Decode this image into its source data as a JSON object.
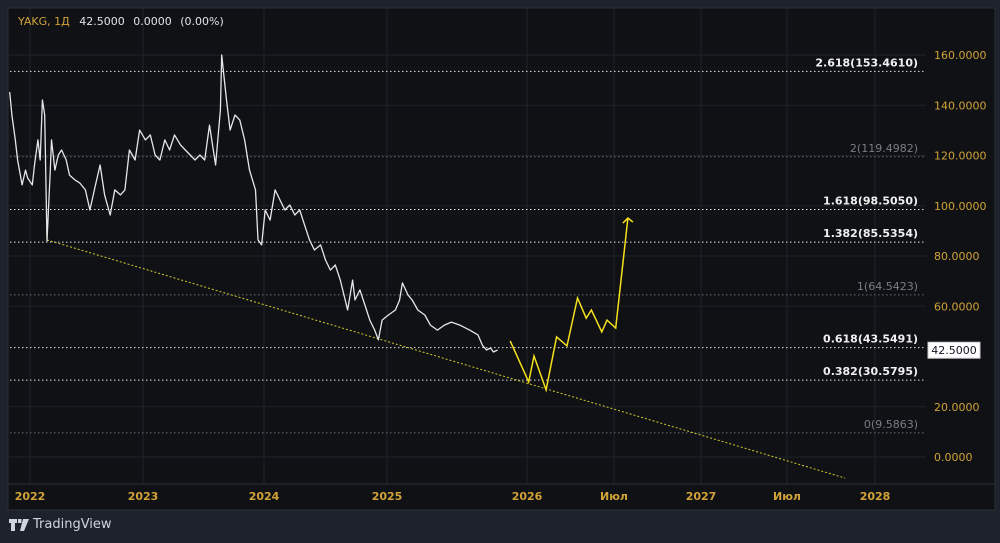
{
  "header": {
    "symbol": "YAKG, 1Д",
    "price": "42.5000",
    "change": "0.0000",
    "change_pct": "(0.00%)"
  },
  "brand": {
    "name": "TradingView",
    "icon": "tradingview-logo-icon"
  },
  "colors": {
    "background": "#1e222d",
    "panel": "#0f1115",
    "axis_text": "#d1a237",
    "price_line": "#e6e6e6",
    "projection": "#f5e11c",
    "trendline": "#d9c92a",
    "grid": "#1f2229"
  },
  "chart_data": {
    "type": "line",
    "title": "YAKG, 1Д",
    "ylim": [
      -12,
      170
    ],
    "xlim": [
      2021.8,
      2028.3
    ],
    "y_ticks": [
      "160.0000",
      "140.0000",
      "120.0000",
      "100.0000",
      "80.0000",
      "60.0000",
      "20.0000",
      "0.0000"
    ],
    "y_tick_values": [
      160,
      140,
      120,
      100,
      80,
      60,
      20,
      0
    ],
    "x_ticks": [
      {
        "label": "2022",
        "t": 2022
      },
      {
        "label": "2023",
        "t": 2023
      },
      {
        "label": "2024",
        "t": 2024
      },
      {
        "label": "2025",
        "t": 2025
      },
      {
        "label": "2026",
        "t": 2026
      },
      {
        "label": "Июл",
        "t": 2026.5
      },
      {
        "label": "2027",
        "t": 2027
      },
      {
        "label": "Июл",
        "t": 2027.5
      },
      {
        "label": "2028",
        "t": 2028
      }
    ],
    "current_price": {
      "value": 42.5,
      "label": "42.5000"
    },
    "fib_levels": [
      {
        "label": "2.618(153.4610)",
        "value": 153.461,
        "strong": true
      },
      {
        "label": "2(119.4982)",
        "value": 119.4982,
        "strong": false
      },
      {
        "label": "1.618(98.5050)",
        "value": 98.505,
        "strong": true
      },
      {
        "label": "1.382(85.5354)",
        "value": 85.5354,
        "strong": true
      },
      {
        "label": "1(64.5423)",
        "value": 64.5423,
        "strong": false
      },
      {
        "label": "0.618(43.5491)",
        "value": 43.5491,
        "strong": true
      },
      {
        "label": "0.382(30.5795)",
        "value": 30.5795,
        "strong": true
      },
      {
        "label": "0(9.5863)",
        "value": 9.5863,
        "strong": false
      }
    ],
    "series": [
      {
        "name": "YAKG",
        "points": [
          [
            2021.82,
            145.3
          ],
          [
            2021.84,
            136.1
          ],
          [
            2021.87,
            126.2
          ],
          [
            2021.89,
            118.2
          ],
          [
            2021.93,
            108.3
          ],
          [
            2021.96,
            114.2
          ],
          [
            2021.98,
            111.0
          ],
          [
            2022.02,
            108.3
          ],
          [
            2022.04,
            116.2
          ],
          [
            2022.07,
            126.2
          ],
          [
            2022.09,
            118.2
          ],
          [
            2022.11,
            142.1
          ],
          [
            2022.13,
            136.1
          ],
          [
            2022.15,
            86.0
          ],
          [
            2022.18,
            114.2
          ],
          [
            2022.19,
            126.2
          ],
          [
            2022.22,
            114.2
          ],
          [
            2022.25,
            120.2
          ],
          [
            2022.28,
            122.2
          ],
          [
            2022.32,
            118.2
          ],
          [
            2022.35,
            112.2
          ],
          [
            2022.4,
            110.2
          ],
          [
            2022.44,
            109.1
          ],
          [
            2022.49,
            106.3
          ],
          [
            2022.53,
            98.3
          ],
          [
            2022.58,
            108.3
          ],
          [
            2022.62,
            116.2
          ],
          [
            2022.66,
            104.3
          ],
          [
            2022.71,
            96.3
          ],
          [
            2022.75,
            106.3
          ],
          [
            2022.8,
            104.3
          ],
          [
            2022.84,
            106.3
          ],
          [
            2022.88,
            122.2
          ],
          [
            2022.93,
            118.2
          ],
          [
            2022.97,
            130.1
          ],
          [
            2023.02,
            126.2
          ],
          [
            2023.06,
            128.2
          ],
          [
            2023.1,
            120.2
          ],
          [
            2023.14,
            118.2
          ],
          [
            2023.18,
            126.2
          ],
          [
            2023.22,
            122.2
          ],
          [
            2023.26,
            128.2
          ],
          [
            2023.31,
            124.2
          ],
          [
            2023.35,
            122.2
          ],
          [
            2023.39,
            120.2
          ],
          [
            2023.43,
            118.2
          ],
          [
            2023.47,
            120.2
          ],
          [
            2023.51,
            118.2
          ],
          [
            2023.55,
            132.1
          ],
          [
            2023.6,
            116.2
          ],
          [
            2023.64,
            138.1
          ],
          [
            2023.65,
            160.0
          ],
          [
            2023.69,
            142.1
          ],
          [
            2023.72,
            130.1
          ],
          [
            2023.76,
            136.1
          ],
          [
            2023.8,
            134.1
          ],
          [
            2023.84,
            126.2
          ],
          [
            2023.88,
            114.2
          ],
          [
            2023.93,
            106.3
          ],
          [
            2023.95,
            86.4
          ],
          [
            2023.98,
            84.4
          ],
          [
            2024.01,
            98.3
          ],
          [
            2024.05,
            94.3
          ],
          [
            2024.09,
            106.3
          ],
          [
            2024.13,
            102.3
          ],
          [
            2024.17,
            98.3
          ],
          [
            2024.21,
            100.3
          ],
          [
            2024.25,
            96.3
          ],
          [
            2024.29,
            98.3
          ],
          [
            2024.33,
            92.3
          ],
          [
            2024.37,
            86.4
          ],
          [
            2024.41,
            82.4
          ],
          [
            2024.46,
            84.4
          ],
          [
            2024.5,
            78.4
          ],
          [
            2024.54,
            74.4
          ],
          [
            2024.58,
            76.4
          ],
          [
            2024.62,
            70.4
          ],
          [
            2024.66,
            62.5
          ],
          [
            2024.68,
            58.5
          ],
          [
            2024.72,
            70.4
          ],
          [
            2024.74,
            62.5
          ],
          [
            2024.78,
            66.5
          ],
          [
            2024.82,
            60.5
          ],
          [
            2024.86,
            54.5
          ],
          [
            2024.9,
            50.5
          ],
          [
            2024.93,
            46.6
          ],
          [
            2024.96,
            54.5
          ],
          [
            2025.01,
            56.5
          ],
          [
            2025.06,
            58.5
          ],
          [
            2025.09,
            62.5
          ],
          [
            2025.11,
            69.3
          ],
          [
            2025.15,
            64.5
          ],
          [
            2025.18,
            62.5
          ],
          [
            2025.22,
            58.5
          ],
          [
            2025.27,
            56.5
          ],
          [
            2025.31,
            52.5
          ],
          [
            2025.36,
            50.5
          ],
          [
            2025.41,
            52.5
          ],
          [
            2025.46,
            53.7
          ],
          [
            2025.52,
            52.5
          ],
          [
            2025.59,
            50.5
          ],
          [
            2025.65,
            48.6
          ],
          [
            2025.68,
            44.6
          ],
          [
            2025.71,
            42.6
          ],
          [
            2025.74,
            43.4
          ],
          [
            2025.76,
            41.8
          ],
          [
            2025.79,
            42.6
          ]
        ]
      },
      {
        "name": "projection",
        "points": [
          [
            2025.88,
            46.2
          ],
          [
            2026.01,
            29.9
          ],
          [
            2026.04,
            40.2
          ],
          [
            2026.11,
            26.7
          ],
          [
            2026.17,
            47.8
          ],
          [
            2026.23,
            44.2
          ],
          [
            2026.29,
            63.3
          ],
          [
            2026.34,
            55.3
          ],
          [
            2026.37,
            58.5
          ],
          [
            2026.43,
            49.8
          ],
          [
            2026.46,
            54.5
          ],
          [
            2026.51,
            51.3
          ],
          [
            2026.58,
            95.1
          ]
        ]
      },
      {
        "name": "trendline",
        "points": [
          [
            2022.15,
            86.4
          ],
          [
            2027.83,
            -8.4
          ]
        ]
      }
    ]
  }
}
